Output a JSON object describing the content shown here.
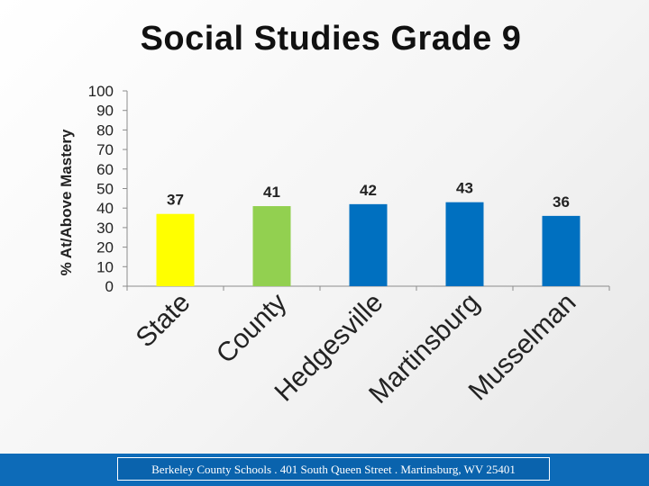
{
  "chart_data": {
    "type": "bar",
    "title": "Social Studies Grade 9",
    "ylabel": "% At/Above Mastery",
    "categories": [
      "State",
      "County",
      "Hedgesville",
      "Martinsburg",
      "Musselman"
    ],
    "values": [
      37,
      41,
      42,
      43,
      36
    ],
    "colors": [
      "#ffff00",
      "#92d050",
      "#0070c0",
      "#0070c0",
      "#0070c0"
    ],
    "ylim": [
      0,
      100
    ],
    "yticks": [
      0,
      10,
      20,
      30,
      40,
      50,
      60,
      70,
      80,
      90,
      100
    ],
    "grid": false,
    "legend": "none"
  },
  "footer": {
    "text": "Berkeley County Schools . 401 South Queen Street . Martinsburg, WV  25401"
  }
}
